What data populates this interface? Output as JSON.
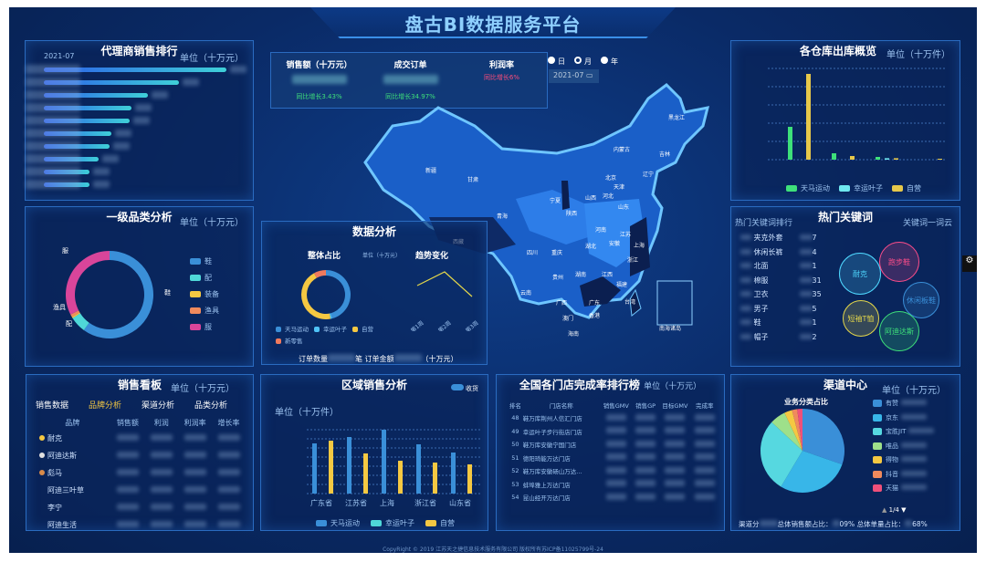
{
  "header": {
    "title": "盘古BI数据服务平台"
  },
  "agent_rank": {
    "title": "代理商销售排行",
    "date": "2021-07",
    "unit": "单位（十万元）",
    "bar_fractions": [
      1.0,
      0.74,
      0.57,
      0.48,
      0.47,
      0.37,
      0.36,
      0.3,
      0.25,
      0.25
    ]
  },
  "category": {
    "title": "一级品类分析",
    "unit": "单位（十万元）",
    "slices": [
      {
        "label": "鞋",
        "value": 60,
        "color": "#3a8fd8"
      },
      {
        "label": "配",
        "value": 6,
        "color": "#4fd8d8"
      },
      {
        "label": "装备",
        "value": 0.5,
        "color": "#f5c842"
      },
      {
        "label": "渔具",
        "value": 1,
        "color": "#f08a5d"
      },
      {
        "label": "服",
        "value": 32.5,
        "color": "#d9459a"
      }
    ]
  },
  "kpi": {
    "items": [
      {
        "label": "销售额（十万元）",
        "change": "同比增长3.43%",
        "change_color": "#3ee07a"
      },
      {
        "label": "成交订单",
        "change": "同比增长34.97%",
        "change_color": "#3ee07a"
      },
      {
        "label": "利润率",
        "change": "同比增长6%",
        "change_color": "#ff4d7a"
      }
    ]
  },
  "period": {
    "options": [
      "日",
      "月",
      "年"
    ],
    "selected": "月",
    "date": "2021-07"
  },
  "map": {
    "provinces": [
      "新疆",
      "甘肃",
      "青海",
      "西藏",
      "内蒙古",
      "黑龙江",
      "吉林",
      "辽宁",
      "北京",
      "天津",
      "河北",
      "山西",
      "宁夏",
      "陕西",
      "山东",
      "河南",
      "江苏",
      "上海",
      "安徽",
      "湖北",
      "四川",
      "重庆",
      "浙江",
      "贵州",
      "湖南",
      "江西",
      "福建",
      "云南",
      "广西",
      "广东",
      "香港",
      "澳门",
      "台湾",
      "海南"
    ],
    "inset": "南海诸岛"
  },
  "analysis": {
    "title": "数据分析",
    "overall": "整体占比",
    "unit": "单位（十万元）",
    "trend": "趋势变化",
    "donut": [
      {
        "label": "天马运动",
        "value": 46,
        "color": "#3a8fd8"
      },
      {
        "label": "幸运叶子",
        "value": 1,
        "color": "#4fc3f7"
      },
      {
        "label": "自营",
        "value": 45,
        "color": "#f5c842"
      },
      {
        "label": "新零售",
        "value": 8,
        "color": "#f07a5d"
      }
    ],
    "weeks": [
      "第1周",
      "第2周",
      "第3周"
    ],
    "trend_values": [
      2,
      3,
      1.2
    ],
    "order_count_label": "订单数量",
    "order_count_unit": "笔",
    "order_amount_label": "订单金额",
    "order_amount_unit": "（十万元）"
  },
  "warehouse": {
    "title": "各仓库出库概览",
    "unit": "单位（十万件）",
    "legend": [
      {
        "label": "天马运动",
        "color": "#3ee07a"
      },
      {
        "label": "幸运叶子",
        "color": "#6fe8f0"
      },
      {
        "label": "自营",
        "color": "#e6c84a"
      }
    ],
    "values": [
      [
        1.8,
        0,
        4.7
      ],
      [
        0.35,
        0,
        0.2
      ],
      [
        0.15,
        0.08,
        0.08
      ],
      [
        0,
        0,
        0.05
      ]
    ],
    "ylim": [
      0,
      5
    ]
  },
  "keywords": {
    "title": "热门关键词",
    "rank_title": "热门关键词排行",
    "cloud_title": "关键词一词云",
    "rank": [
      {
        "word": "夹克外套",
        "count": "7"
      },
      {
        "word": "休闲长裤",
        "count": "4"
      },
      {
        "word": "北面",
        "count": "1"
      },
      {
        "word": "棉服",
        "count": "31"
      },
      {
        "word": "卫衣",
        "count": "35"
      },
      {
        "word": "男子",
        "count": "5"
      },
      {
        "word": "鞋",
        "count": "1"
      },
      {
        "word": "帽子",
        "count": "2"
      }
    ],
    "cloud": [
      {
        "word": "耐克",
        "color": "#4fd8ff"
      },
      {
        "word": "跑步鞋",
        "color": "#ff4d8a"
      },
      {
        "word": "休闲板鞋",
        "color": "#3a8fd8"
      },
      {
        "word": "短袖T恤",
        "color": "#e6d84a"
      },
      {
        "word": "阿迪达斯",
        "color": "#3ee07a"
      }
    ]
  },
  "sales_board": {
    "title": "销售看板",
    "unit": "单位（十万元）",
    "tabs": [
      "销售数据",
      "品牌分析",
      "渠道分析",
      "品类分析"
    ],
    "active_tab": "品牌分析",
    "columns": [
      "品牌",
      "销售额",
      "利润",
      "利润率",
      "增长率"
    ],
    "brands": [
      "耐克",
      "阿迪达斯",
      "彪马",
      "阿迪三叶草",
      "李宁",
      "阿迪生活"
    ]
  },
  "region": {
    "title": "区域销售分析",
    "toggle": "收货",
    "unit": "单位（十万件）",
    "chart_data": {
      "type": "bar",
      "categories": [
        "广东省",
        "江苏省",
        "上海",
        "浙江省",
        "山东省"
      ],
      "series": [
        {
          "name": "天马运动",
          "color": "#3a8fd8",
          "values": [
            5.5,
            6.2,
            7.0,
            5.4,
            4.5
          ]
        },
        {
          "name": "幸运叶子",
          "color": "#4fd8d8",
          "values": [
            0,
            0,
            0,
            0,
            0
          ]
        },
        {
          "name": "自营",
          "color": "#f5c842",
          "values": [
            5.8,
            4.4,
            3.6,
            3.4,
            3.2
          ]
        }
      ],
      "ylim": [
        0,
        7
      ],
      "grid": true,
      "legend": "bottom"
    }
  },
  "store_rank": {
    "title": "全国各门店完成率排行榜",
    "unit": "单位（十万元）",
    "columns": [
      "排名",
      "门店名称",
      "销售GMV",
      "销售GP",
      "目标GMV",
      "完成率"
    ],
    "rows": [
      {
        "rank": "48",
        "name": "鞋万库荆州人信汇门店"
      },
      {
        "rank": "49",
        "name": "幸运叶子步行街店门店"
      },
      {
        "rank": "50",
        "name": "鞋万库安徽宁国门店"
      },
      {
        "rank": "51",
        "name": "德阳琦能万达门店"
      },
      {
        "rank": "52",
        "name": "鞋万库安徽砀山万达..."
      },
      {
        "rank": "53",
        "name": "蚌埠雅上万达门店"
      },
      {
        "rank": "54",
        "name": "昆山经开万达门店"
      }
    ]
  },
  "channel": {
    "title": "渠道中心",
    "unit": "单位（十万元）",
    "subtitle": "业务分类占比",
    "page": "1/4",
    "slices": [
      {
        "label": "有赞",
        "value": 30,
        "color": "#3a8fd8"
      },
      {
        "label": "京东",
        "value": 28,
        "color": "#38b6e8"
      },
      {
        "label": "宝胜JIT",
        "value": 28,
        "color": "#56d8e0"
      },
      {
        "label": "唯品",
        "value": 6,
        "color": "#9ee08a"
      },
      {
        "label": "得物",
        "value": 3,
        "color": "#f5c842"
      },
      {
        "label": "抖音",
        "value": 2,
        "color": "#f08a5d"
      },
      {
        "label": "天猫",
        "value": 2,
        "color": "#f0507a"
      }
    ],
    "footer_a": "渠道分",
    "footer_b": "总体销售额占比：",
    "footer_b_val": "09%",
    "footer_c": "总体单量占比：",
    "footer_c_val": "68%"
  },
  "footer": {
    "copyright": "CopyRight © 2019 江苏天之捷信息技术服务有限公司 版权所有苏ICP备11025799号-24"
  }
}
